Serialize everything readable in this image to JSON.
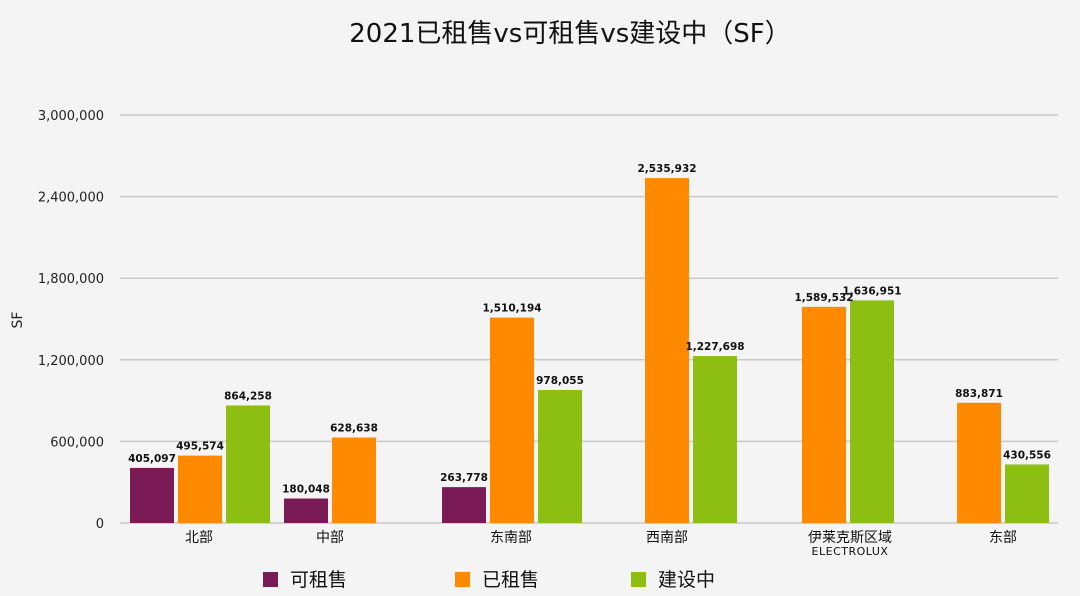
{
  "chart_data": {
    "type": "bar",
    "title": "2021已租售vs可租售vs建设中（SF）",
    "xlabel": "",
    "ylabel": "SF",
    "ylim": [
      0,
      3000000
    ],
    "yticks": [
      0,
      600000,
      1200000,
      1800000,
      2400000,
      3000000
    ],
    "ytick_labels": [
      "0",
      "600,000",
      "1,200,000",
      "1,800,000",
      "2,400,000",
      "3,000,000"
    ],
    "grid": true,
    "legend_position": "bottom",
    "categories": [
      {
        "label": "北部",
        "sublabel": ""
      },
      {
        "label": "中部",
        "sublabel": ""
      },
      {
        "label": "东南部",
        "sublabel": ""
      },
      {
        "label": "西南部",
        "sublabel": ""
      },
      {
        "label": "伊莱克斯区域",
        "sublabel": "ELECTROLUX"
      },
      {
        "label": "东部",
        "sublabel": ""
      }
    ],
    "series": [
      {
        "name": "可租售",
        "color": "#7b1b55",
        "values": [
          405097,
          180048,
          263778,
          null,
          null,
          null
        ],
        "labels": [
          "405,097",
          "180,048",
          "263,778",
          null,
          null,
          null
        ]
      },
      {
        "name": "已租售",
        "color": "#ff8a00",
        "values": [
          495574,
          628638,
          1510194,
          2535932,
          1589532,
          883871
        ],
        "labels": [
          "495,574",
          "628,638",
          "1,510,194",
          "2,535,932",
          "1,589,532",
          "883,871"
        ]
      },
      {
        "name": "建设中",
        "color": "#8cbf12",
        "values": [
          864258,
          null,
          978055,
          1227698,
          1636951,
          430556
        ],
        "labels": [
          "864,258",
          null,
          "978,055",
          "1,227,698",
          "1,636,951",
          "430,556"
        ]
      }
    ]
  }
}
